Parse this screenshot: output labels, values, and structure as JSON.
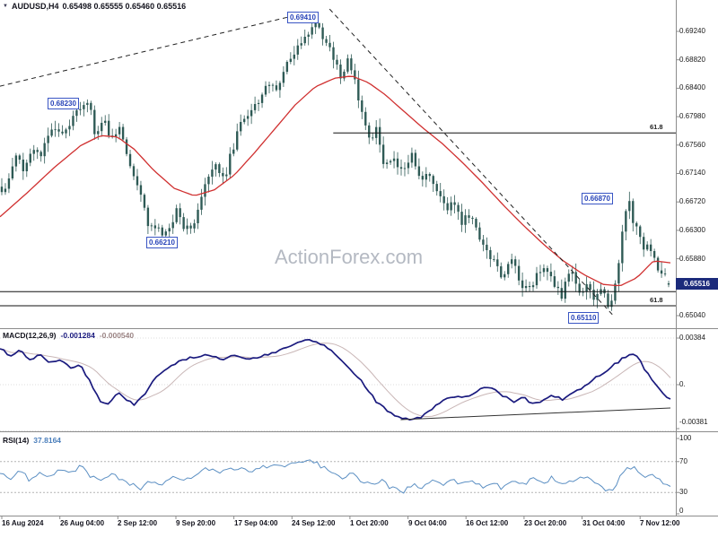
{
  "title": {
    "symbol": "AUDUSD,H4",
    "ohlc": "0.65498 0.65555 0.65460 0.65516"
  },
  "icons": {
    "dropdown": "▼"
  },
  "watermark": "ActionForex.com",
  "macd_panel": {
    "name": "MACD(12,26,9)",
    "value_main": "-0.001284",
    "value_signal": "-0.000540"
  },
  "rsi_panel": {
    "name": "RSI(14)",
    "value": "37.8164"
  },
  "colors": {
    "background": "#ffffff",
    "candle": "#2e5a55",
    "ma_line": "#d03030",
    "macd_line": "#1a1a7e",
    "macd_signal": "#c9b6b6",
    "rsi_line": "#5b8fc3",
    "trendline": "#222222",
    "hline": "#111111",
    "separator": "#8c8c8c",
    "badge_bg": "#1b2a7b",
    "annotation": "#2743b8",
    "watermark": "#b4b9c2"
  },
  "chart_data": {
    "type": "candlestick",
    "symbol": "AUDUSD",
    "timeframe": "H4",
    "ohlc_display": {
      "open": 0.65498,
      "high": 0.65555,
      "low": 0.6546,
      "close": 0.65516
    },
    "x_labels": [
      "16 Aug 2024",
      "26 Aug 04:00",
      "2 Sep 12:00",
      "9 Sep 20:00",
      "17 Sep 04:00",
      "24 Sep 12:00",
      "1 Oct 20:00",
      "9 Oct 04:00",
      "16 Oct 12:00",
      "23 Oct 20:00",
      "31 Oct 04:00",
      "7 Nov 12:00"
    ],
    "main": {
      "y_ticks": [
        0.6924,
        0.6882,
        0.684,
        0.6798,
        0.6756,
        0.6714,
        0.6672,
        0.663,
        0.6588,
        0.6504
      ],
      "price_range": [
        0.64854,
        0.69571
      ],
      "current_price": 0.65516,
      "current_price_text": "0.65516",
      "price_anchors": [
        [
          0,
          0.6685
        ],
        [
          0.01,
          0.6705
        ],
        [
          0.022,
          0.6748
        ],
        [
          0.032,
          0.6722
        ],
        [
          0.045,
          0.6752
        ],
        [
          0.06,
          0.674
        ],
        [
          0.075,
          0.6785
        ],
        [
          0.095,
          0.677
        ],
        [
          0.112,
          0.6812
        ],
        [
          0.13,
          0.6822
        ],
        [
          0.14,
          0.677
        ],
        [
          0.155,
          0.679
        ],
        [
          0.165,
          0.6762
        ],
        [
          0.175,
          0.6785
        ],
        [
          0.19,
          0.6735
        ],
        [
          0.205,
          0.669
        ],
        [
          0.22,
          0.664
        ],
        [
          0.235,
          0.6628
        ],
        [
          0.248,
          0.6622
        ],
        [
          0.262,
          0.666
        ],
        [
          0.275,
          0.6632
        ],
        [
          0.29,
          0.6645
        ],
        [
          0.305,
          0.6695
        ],
        [
          0.32,
          0.6725
        ],
        [
          0.335,
          0.671
        ],
        [
          0.35,
          0.6765
        ],
        [
          0.365,
          0.68
        ],
        [
          0.38,
          0.6815
        ],
        [
          0.395,
          0.6845
        ],
        [
          0.41,
          0.6838
        ],
        [
          0.425,
          0.687
        ],
        [
          0.44,
          0.689
        ],
        [
          0.452,
          0.6912
        ],
        [
          0.463,
          0.6928
        ],
        [
          0.472,
          0.6933
        ],
        [
          0.482,
          0.6915
        ],
        [
          0.492,
          0.6895
        ],
        [
          0.502,
          0.6872
        ],
        [
          0.51,
          0.6855
        ],
        [
          0.518,
          0.688
        ],
        [
          0.528,
          0.686
        ],
        [
          0.54,
          0.68
        ],
        [
          0.552,
          0.676
        ],
        [
          0.562,
          0.678
        ],
        [
          0.575,
          0.672
        ],
        [
          0.588,
          0.6738
        ],
        [
          0.6,
          0.6715
        ],
        [
          0.615,
          0.674
        ],
        [
          0.628,
          0.67
        ],
        [
          0.64,
          0.6715
        ],
        [
          0.652,
          0.669
        ],
        [
          0.665,
          0.666
        ],
        [
          0.678,
          0.6675
        ],
        [
          0.69,
          0.664
        ],
        [
          0.702,
          0.6655
        ],
        [
          0.715,
          0.662
        ],
        [
          0.728,
          0.66
        ],
        [
          0.74,
          0.658
        ],
        [
          0.752,
          0.656
        ],
        [
          0.765,
          0.659
        ],
        [
          0.778,
          0.6555
        ],
        [
          0.79,
          0.654
        ],
        [
          0.802,
          0.6565
        ],
        [
          0.815,
          0.658
        ],
        [
          0.828,
          0.6545
        ],
        [
          0.84,
          0.6535
        ],
        [
          0.852,
          0.657
        ],
        [
          0.865,
          0.654
        ],
        [
          0.878,
          0.6545
        ],
        [
          0.89,
          0.653
        ],
        [
          0.902,
          0.654
        ],
        [
          0.912,
          0.6513
        ],
        [
          0.922,
          0.656
        ],
        [
          0.932,
          0.664
        ],
        [
          0.94,
          0.668
        ],
        [
          0.948,
          0.664
        ],
        [
          0.956,
          0.662
        ],
        [
          0.964,
          0.66
        ],
        [
          0.972,
          0.661
        ],
        [
          0.98,
          0.658
        ],
        [
          0.99,
          0.6565
        ],
        [
          1,
          0.6552
        ]
      ],
      "ma_anchors": [
        [
          0,
          0.665
        ],
        [
          0.04,
          0.6685
        ],
        [
          0.08,
          0.6722
        ],
        [
          0.12,
          0.6755
        ],
        [
          0.15,
          0.677
        ],
        [
          0.175,
          0.6768
        ],
        [
          0.2,
          0.675
        ],
        [
          0.23,
          0.6718
        ],
        [
          0.26,
          0.6692
        ],
        [
          0.29,
          0.6681
        ],
        [
          0.32,
          0.669
        ],
        [
          0.35,
          0.6712
        ],
        [
          0.38,
          0.6745
        ],
        [
          0.41,
          0.678
        ],
        [
          0.44,
          0.6815
        ],
        [
          0.47,
          0.6842
        ],
        [
          0.5,
          0.6855
        ],
        [
          0.525,
          0.6858
        ],
        [
          0.55,
          0.6848
        ],
        [
          0.575,
          0.683
        ],
        [
          0.6,
          0.6808
        ],
        [
          0.63,
          0.6782
        ],
        [
          0.66,
          0.6758
        ],
        [
          0.69,
          0.673
        ],
        [
          0.72,
          0.67
        ],
        [
          0.75,
          0.6668
        ],
        [
          0.78,
          0.6638
        ],
        [
          0.81,
          0.661
        ],
        [
          0.84,
          0.6585
        ],
        [
          0.87,
          0.6565
        ],
        [
          0.9,
          0.655
        ],
        [
          0.925,
          0.6548
        ],
        [
          0.95,
          0.656
        ],
        [
          0.975,
          0.6585
        ],
        [
          1,
          0.6582
        ]
      ],
      "pins": [
        {
          "f": 0.472,
          "type": "high",
          "price": 0.6941
        },
        {
          "f": 0.13,
          "type": "high",
          "price": 0.6823
        },
        {
          "f": 0.248,
          "type": "low",
          "price": 0.6621
        },
        {
          "f": 0.912,
          "type": "low",
          "price": 0.6511
        },
        {
          "f": 0.94,
          "type": "high",
          "price": 0.6687
        }
      ],
      "trendlines": [
        {
          "style": "dashed",
          "points": [
            [
              0.0,
              0.6843
            ],
            [
              0.45,
              0.695
            ]
          ]
        },
        {
          "style": "dashed",
          "points": [
            [
              0.4915,
              0.6957
            ],
            [
              0.9149,
              0.6504
            ]
          ]
        }
      ],
      "hlines": [
        {
          "price": 0.6774,
          "from": 0.497,
          "label": "61.8"
        },
        {
          "price": 0.65395,
          "from": 0
        },
        {
          "price": 0.65185,
          "from": 0,
          "label": "61.8"
        }
      ],
      "price_labels": [
        {
          "text": "0.69410",
          "price": 0.6941,
          "xf": 0.429,
          "dy": -3
        },
        {
          "text": "0.68230",
          "price": 0.6823,
          "xf": 0.071,
          "dy": 4
        },
        {
          "text": "0.66210",
          "price": 0.6621,
          "xf": 0.218,
          "dy": 7
        },
        {
          "text": "0.66870",
          "price": 0.6687,
          "xf": 0.868,
          "dy": 8
        },
        {
          "text": "0.65110",
          "price": 0.6511,
          "xf": 0.848,
          "dy": 8
        }
      ]
    },
    "macd": {
      "levels": [
        {
          "text": "0.00384",
          "value": 0.00384
        },
        {
          "text": "0.",
          "value": 0
        },
        {
          "text": "-0.00381",
          "value": -0.00381
        }
      ],
      "current_main": -0.001284,
      "current_signal": -0.00054,
      "anchors": [
        [
          0,
          0.003
        ],
        [
          0.015,
          0.0024
        ],
        [
          0.03,
          0.0028
        ],
        [
          0.045,
          0.002
        ],
        [
          0.06,
          0.0025
        ],
        [
          0.075,
          0.0018
        ],
        [
          0.09,
          0.0021
        ],
        [
          0.105,
          0.0014
        ],
        [
          0.12,
          0.0016
        ],
        [
          0.135,
          0.0002
        ],
        [
          0.15,
          -0.0014
        ],
        [
          0.162,
          -0.0017
        ],
        [
          0.175,
          -0.0006
        ],
        [
          0.188,
          -0.0013
        ],
        [
          0.2,
          -0.0016
        ],
        [
          0.215,
          -0.0008
        ],
        [
          0.23,
          0.0004
        ],
        [
          0.25,
          0.0013
        ],
        [
          0.27,
          0.002
        ],
        [
          0.29,
          0.0023
        ],
        [
          0.31,
          0.0024
        ],
        [
          0.33,
          0.0021
        ],
        [
          0.35,
          0.0024
        ],
        [
          0.37,
          0.0021
        ],
        [
          0.39,
          0.0023
        ],
        [
          0.41,
          0.0027
        ],
        [
          0.43,
          0.0032
        ],
        [
          0.45,
          0.0036
        ],
        [
          0.465,
          0.0037
        ],
        [
          0.48,
          0.0033
        ],
        [
          0.5,
          0.0025
        ],
        [
          0.52,
          0.0014
        ],
        [
          0.54,
          0.0002
        ],
        [
          0.56,
          -0.0013
        ],
        [
          0.58,
          -0.0023
        ],
        [
          0.6,
          -0.0028
        ],
        [
          0.615,
          -0.0029
        ],
        [
          0.63,
          -0.0026
        ],
        [
          0.645,
          -0.002
        ],
        [
          0.66,
          -0.0013
        ],
        [
          0.675,
          -0.0009
        ],
        [
          0.69,
          -0.0011
        ],
        [
          0.705,
          -0.0008
        ],
        [
          0.72,
          -0.0003
        ],
        [
          0.735,
          -0.0002
        ],
        [
          0.75,
          -0.0009
        ],
        [
          0.765,
          -0.0014
        ],
        [
          0.78,
          -0.001
        ],
        [
          0.795,
          -0.0016
        ],
        [
          0.81,
          -0.0013
        ],
        [
          0.825,
          -0.0009
        ],
        [
          0.84,
          -0.0012
        ],
        [
          0.855,
          -0.0007
        ],
        [
          0.87,
          -0.0002
        ],
        [
          0.885,
          0.0004
        ],
        [
          0.9,
          0.001
        ],
        [
          0.915,
          0.0016
        ],
        [
          0.93,
          0.0022
        ],
        [
          0.942,
          0.0026
        ],
        [
          0.952,
          0.0022
        ],
        [
          0.962,
          0.0012
        ],
        [
          0.975,
          0.0002
        ],
        [
          0.988,
          -0.0007
        ],
        [
          1,
          -0.00128
        ]
      ],
      "trendline": {
        "points": [
          [
            0.5976,
            -0.00288
          ],
          [
            1.0,
            -0.00192
          ]
        ]
      }
    },
    "rsi": {
      "levels": [
        {
          "text": "100",
          "value": 100
        },
        {
          "text": "70",
          "value": 70
        },
        {
          "text": "30",
          "value": 30
        },
        {
          "text": "0",
          "value": 0
        }
      ],
      "dotted": [
        70,
        30
      ],
      "current": 37.8164,
      "anchors": [
        [
          0,
          55
        ],
        [
          0.015,
          48
        ],
        [
          0.03,
          60
        ],
        [
          0.045,
          45
        ],
        [
          0.06,
          57
        ],
        [
          0.075,
          50
        ],
        [
          0.09,
          62
        ],
        [
          0.105,
          55
        ],
        [
          0.12,
          63
        ],
        [
          0.135,
          52
        ],
        [
          0.15,
          44
        ],
        [
          0.165,
          54
        ],
        [
          0.18,
          47
        ],
        [
          0.195,
          40
        ],
        [
          0.21,
          36
        ],
        [
          0.225,
          45
        ],
        [
          0.24,
          40
        ],
        [
          0.255,
          52
        ],
        [
          0.27,
          44
        ],
        [
          0.285,
          50
        ],
        [
          0.3,
          58
        ],
        [
          0.315,
          62
        ],
        [
          0.33,
          55
        ],
        [
          0.345,
          60
        ],
        [
          0.36,
          64
        ],
        [
          0.375,
          58
        ],
        [
          0.39,
          63
        ],
        [
          0.405,
          66
        ],
        [
          0.42,
          62
        ],
        [
          0.435,
          67
        ],
        [
          0.45,
          70
        ],
        [
          0.465,
          72
        ],
        [
          0.48,
          63
        ],
        [
          0.495,
          55
        ],
        [
          0.51,
          50
        ],
        [
          0.525,
          56
        ],
        [
          0.54,
          45
        ],
        [
          0.555,
          38
        ],
        [
          0.57,
          44
        ],
        [
          0.585,
          35
        ],
        [
          0.6,
          30
        ],
        [
          0.615,
          40
        ],
        [
          0.63,
          35
        ],
        [
          0.645,
          44
        ],
        [
          0.66,
          38
        ],
        [
          0.675,
          47
        ],
        [
          0.69,
          40
        ],
        [
          0.705,
          45
        ],
        [
          0.72,
          37
        ],
        [
          0.735,
          43
        ],
        [
          0.75,
          35
        ],
        [
          0.765,
          45
        ],
        [
          0.78,
          40
        ],
        [
          0.795,
          50
        ],
        [
          0.81,
          42
        ],
        [
          0.825,
          50
        ],
        [
          0.84,
          38
        ],
        [
          0.855,
          45
        ],
        [
          0.87,
          50
        ],
        [
          0.885,
          44
        ],
        [
          0.9,
          35
        ],
        [
          0.912,
          30
        ],
        [
          0.924,
          48
        ],
        [
          0.936,
          60
        ],
        [
          0.945,
          65
        ],
        [
          0.955,
          55
        ],
        [
          0.965,
          50
        ],
        [
          0.975,
          55
        ],
        [
          0.985,
          45
        ],
        [
          1,
          37.8
        ]
      ]
    }
  }
}
